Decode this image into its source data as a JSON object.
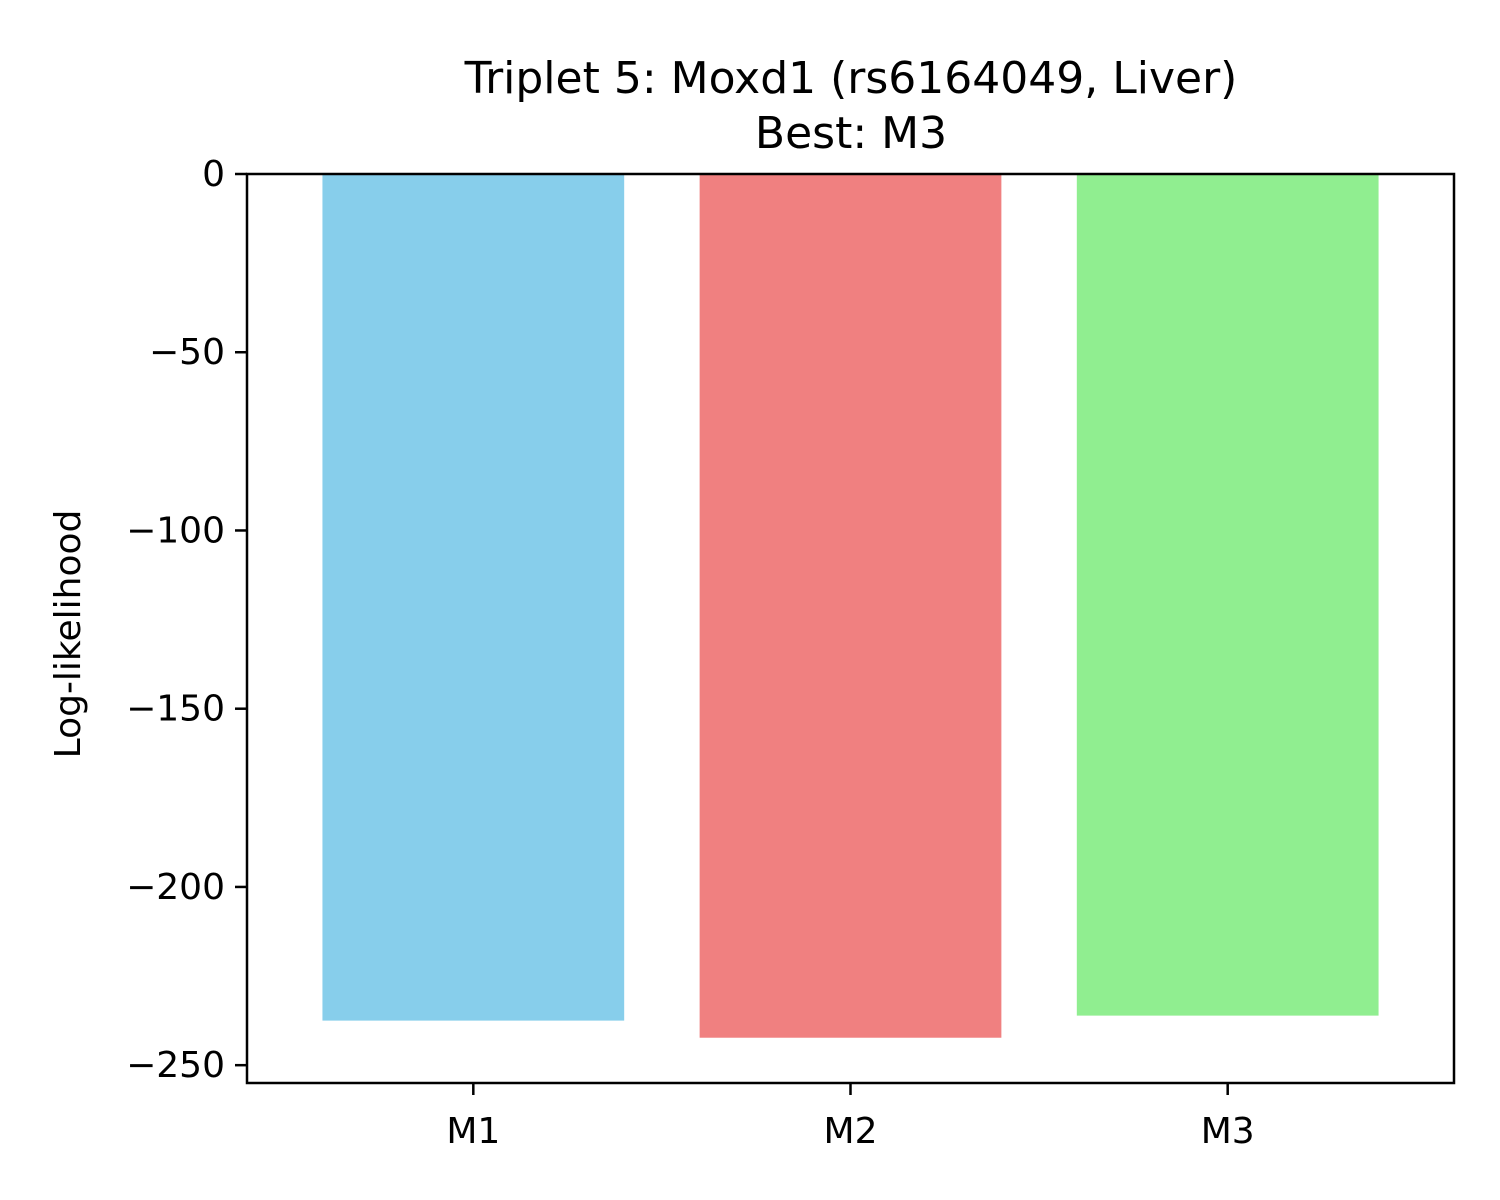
{
  "chart_data": {
    "type": "bar",
    "title": "Triplet 5: Moxd1 (rs6164049, Liver)",
    "subtitle": "Best: M3",
    "xlabel": "",
    "ylabel": "Log-likelihood",
    "categories": [
      "M1",
      "M2",
      "M3"
    ],
    "values": [
      -237.5,
      -242.3,
      -236.1
    ],
    "colors": [
      "#87ceeb",
      "#f08080",
      "#90ee90"
    ],
    "ylim": [
      -255,
      0
    ],
    "yticks": [
      0,
      -50,
      -100,
      -150,
      -200,
      -250
    ],
    "ytick_labels": [
      "0",
      "−50",
      "−100",
      "−150",
      "−200",
      "−250"
    ],
    "grid": false,
    "legend": "none"
  }
}
